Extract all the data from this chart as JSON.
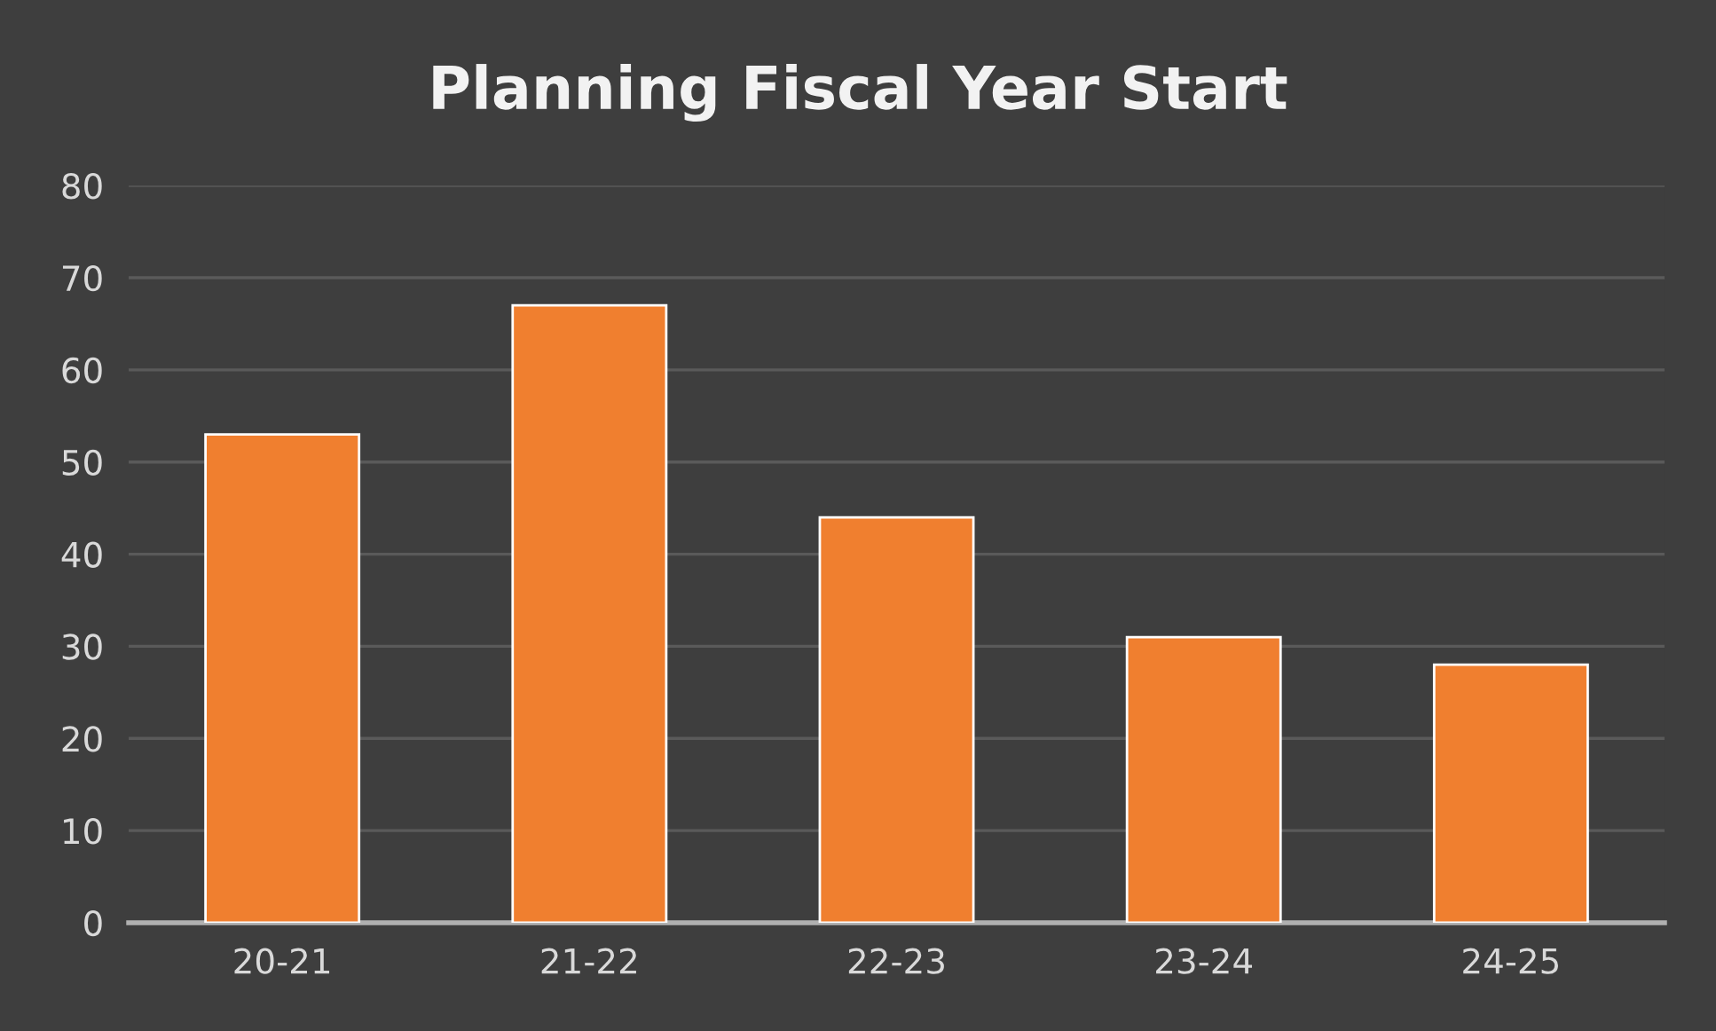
{
  "chart_data": {
    "type": "bar",
    "title": "Planning Fiscal Year Start",
    "categories": [
      "20-21",
      "21-22",
      "22-23",
      "23-24",
      "24-25"
    ],
    "values": [
      53,
      67,
      44,
      31,
      28
    ],
    "color": "#f07f2f",
    "ylim": [
      0,
      80
    ],
    "yticks": [
      0,
      10,
      20,
      30,
      40,
      50,
      60,
      70,
      80
    ],
    "grid": "y",
    "legend": false
  }
}
